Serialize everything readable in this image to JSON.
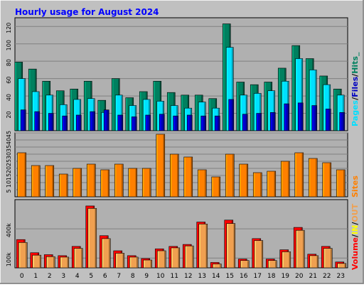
{
  "chart_data": [
    {
      "type": "bar",
      "title": "Hourly usage for August 2024",
      "ylabel": "Pages / Files / Hits",
      "ylim": [
        0,
        130
      ],
      "yticks": [
        20,
        40,
        60,
        80,
        100,
        120
      ],
      "categories": [
        "0",
        "1",
        "2",
        "3",
        "4",
        "5",
        "6",
        "7",
        "8",
        "9",
        "10",
        "11",
        "12",
        "13",
        "14",
        "15",
        "16",
        "17",
        "18",
        "19",
        "20",
        "21",
        "22",
        "23"
      ],
      "series": [
        {
          "name": "Hits",
          "color": "#00805f",
          "values": [
            79,
            71,
            57,
            46,
            48,
            57,
            35,
            60,
            38,
            45,
            57,
            44,
            41,
            41,
            37,
            123,
            56,
            53,
            56,
            72,
            98,
            83,
            63,
            48
          ]
        },
        {
          "name": "Files",
          "color": "#00e0ff",
          "values": [
            60,
            45,
            41,
            30,
            36,
            37,
            21,
            41,
            29,
            36,
            34,
            29,
            26,
            33,
            26,
            96,
            41,
            43,
            46,
            57,
            83,
            70,
            53,
            41
          ]
        },
        {
          "name": "Pages",
          "color": "#0000c0",
          "values": [
            24,
            22,
            20,
            17,
            18,
            22,
            24,
            18,
            16,
            18,
            19,
            17,
            18,
            17,
            17,
            36,
            19,
            20,
            21,
            31,
            32,
            29,
            25,
            21
          ]
        }
      ]
    },
    {
      "type": "bar",
      "ylabel": "Sites",
      "ylim": [
        0,
        45
      ],
      "yticks": [
        5,
        10,
        15,
        20,
        25,
        30,
        35,
        40,
        45
      ],
      "categories": [
        "0",
        "1",
        "2",
        "3",
        "4",
        "5",
        "6",
        "7",
        "8",
        "9",
        "10",
        "11",
        "12",
        "13",
        "14",
        "15",
        "16",
        "17",
        "18",
        "19",
        "20",
        "21",
        "22",
        "23"
      ],
      "series": [
        {
          "name": "Sites",
          "color": "#ff8000",
          "values": [
            31,
            22,
            22,
            16,
            20,
            23,
            19,
            23,
            20,
            20,
            44,
            30,
            28,
            19,
            14,
            30,
            23,
            17,
            18,
            25,
            31,
            27,
            24,
            19
          ]
        }
      ]
    },
    {
      "type": "bar",
      "ylabel": "Volume / IN / OUT",
      "ylim": [
        0,
        700
      ],
      "yticks": [
        100,
        400
      ],
      "ytick_labels": [
        "100k",
        "400k"
      ],
      "categories": [
        "0",
        "1",
        "2",
        "3",
        "4",
        "5",
        "6",
        "7",
        "8",
        "9",
        "10",
        "11",
        "12",
        "13",
        "14",
        "15",
        "16",
        "17",
        "18",
        "19",
        "20",
        "21",
        "22",
        "23"
      ],
      "series": [
        {
          "name": "Volume",
          "color": "#ff0000",
          "values": [
            290,
            155,
            135,
            125,
            220,
            635,
            330,
            175,
            125,
            95,
            195,
            220,
            240,
            470,
            55,
            490,
            90,
            300,
            90,
            185,
            415,
            140,
            220,
            60
          ]
        },
        {
          "name": "OUT",
          "color": "#f0a050",
          "values": [
            260,
            130,
            115,
            110,
            200,
            610,
            300,
            150,
            110,
            80,
            175,
            205,
            225,
            450,
            40,
            455,
            75,
            280,
            75,
            165,
            385,
            125,
            200,
            45
          ]
        }
      ]
    }
  ],
  "legend": {
    "pages": "Pages",
    "files": "Files",
    "hits": "Hits",
    "sites": "Sites",
    "volume": "Volume",
    "in": "IN",
    "out": "OUT",
    "sep": "/",
    "underscore": "_"
  },
  "colors": {
    "background": "#c0c0c0",
    "title": "#0000ff",
    "in": "#ffff00",
    "grid": "#808080"
  }
}
